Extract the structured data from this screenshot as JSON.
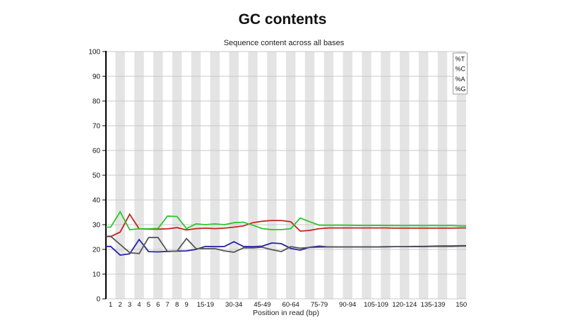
{
  "page_title": "GC contents",
  "colors": {
    "background": "#ffffff",
    "stripe": "#e4e4e4",
    "gridline": "#c9c9c9",
    "axis": "#000000",
    "legend_border": "#a0a0a0",
    "legend_background": "#ffffff"
  },
  "chart_data": {
    "type": "line",
    "title": "Sequence content across all bases",
    "xlabel": "Position in read (bp)",
    "ylabel": "",
    "ylim": [
      0,
      100
    ],
    "ytick_step": 10,
    "grid": true,
    "legend_position": "top-right",
    "x_bins": [
      "1",
      "2",
      "3",
      "4",
      "5",
      "6",
      "7",
      "8",
      "9",
      "10-14",
      "15-19",
      "20-24",
      "25-29",
      "30-34",
      "35-39",
      "40-44",
      "45-49",
      "50-54",
      "55-59",
      "60-64",
      "65-69",
      "70-74",
      "75-79",
      "80-84",
      "85-89",
      "90-94",
      "95-99",
      "100-104",
      "105-109",
      "110-114",
      "115-119",
      "120-124",
      "125-129",
      "130-134",
      "135-139",
      "140-144",
      "145-149",
      "150"
    ],
    "x_ticks": [
      {
        "bin": 1,
        "label": "1"
      },
      {
        "bin": 2,
        "label": "2"
      },
      {
        "bin": 3,
        "label": "3"
      },
      {
        "bin": 4,
        "label": "4"
      },
      {
        "bin": 5,
        "label": "5"
      },
      {
        "bin": 6,
        "label": "6"
      },
      {
        "bin": 7,
        "label": "7"
      },
      {
        "bin": 8,
        "label": "8"
      },
      {
        "bin": 9,
        "label": "9"
      },
      {
        "bin": 11,
        "label": "15-19"
      },
      {
        "bin": 14,
        "label": "30-34"
      },
      {
        "bin": 17,
        "label": "45-49"
      },
      {
        "bin": 20,
        "label": "60-64"
      },
      {
        "bin": 23,
        "label": "75-79"
      },
      {
        "bin": 26,
        "label": "90-94"
      },
      {
        "bin": 29,
        "label": "105-109"
      },
      {
        "bin": 32,
        "label": "120-124"
      },
      {
        "bin": 35,
        "label": "135-139"
      },
      {
        "bin": 38,
        "label": "150"
      }
    ],
    "series": [
      {
        "name": "%T",
        "color": "#c42320",
        "values": [
          25.2,
          27.0,
          34.2,
          28.3,
          28.2,
          28.2,
          28.3,
          28.8,
          27.9,
          28.4,
          28.6,
          28.4,
          28.6,
          29.0,
          29.5,
          30.8,
          31.4,
          31.7,
          31.7,
          31.2,
          27.4,
          27.7,
          28.4,
          28.7,
          28.7,
          28.7,
          28.7,
          28.7,
          28.7,
          28.7,
          28.6,
          28.6,
          28.6,
          28.6,
          28.6,
          28.6,
          28.6,
          28.7
        ]
      },
      {
        "name": "%C",
        "color": "#2323a8",
        "values": [
          21.2,
          17.7,
          18.2,
          24.0,
          19.1,
          19.0,
          19.2,
          19.3,
          19.4,
          20.0,
          21.2,
          21.1,
          21.2,
          23.1,
          21.2,
          21.1,
          21.3,
          22.6,
          22.3,
          20.4,
          19.7,
          20.9,
          21.3,
          21.0,
          21.0,
          21.0,
          21.0,
          21.0,
          21.0,
          21.1,
          21.1,
          21.1,
          21.2,
          21.2,
          21.3,
          21.4,
          21.4,
          21.5
        ]
      },
      {
        "name": "%A",
        "color": "#2cc62c",
        "values": [
          29.0,
          35.2,
          28.0,
          28.3,
          28.3,
          28.5,
          33.5,
          33.3,
          28.4,
          30.3,
          30.0,
          30.3,
          30.0,
          30.8,
          31.0,
          29.8,
          28.4,
          28.0,
          28.0,
          28.4,
          32.7,
          31.2,
          29.8,
          29.8,
          29.8,
          29.8,
          29.7,
          29.7,
          29.7,
          29.7,
          29.6,
          29.6,
          29.6,
          29.6,
          29.6,
          29.6,
          29.6,
          29.5
        ]
      },
      {
        "name": "%G",
        "color": "#565656",
        "values": [
          25.3,
          22.0,
          18.7,
          18.3,
          24.8,
          24.8,
          19.1,
          19.3,
          24.4,
          20.3,
          20.3,
          20.3,
          19.4,
          18.9,
          20.6,
          20.6,
          20.9,
          19.9,
          19.1,
          21.1,
          20.5,
          20.8,
          20.9,
          21.0,
          21.0,
          21.0,
          21.0,
          21.0,
          21.0,
          21.0,
          21.1,
          21.1,
          21.1,
          21.1,
          21.2,
          21.2,
          21.2,
          21.3
        ]
      }
    ]
  }
}
